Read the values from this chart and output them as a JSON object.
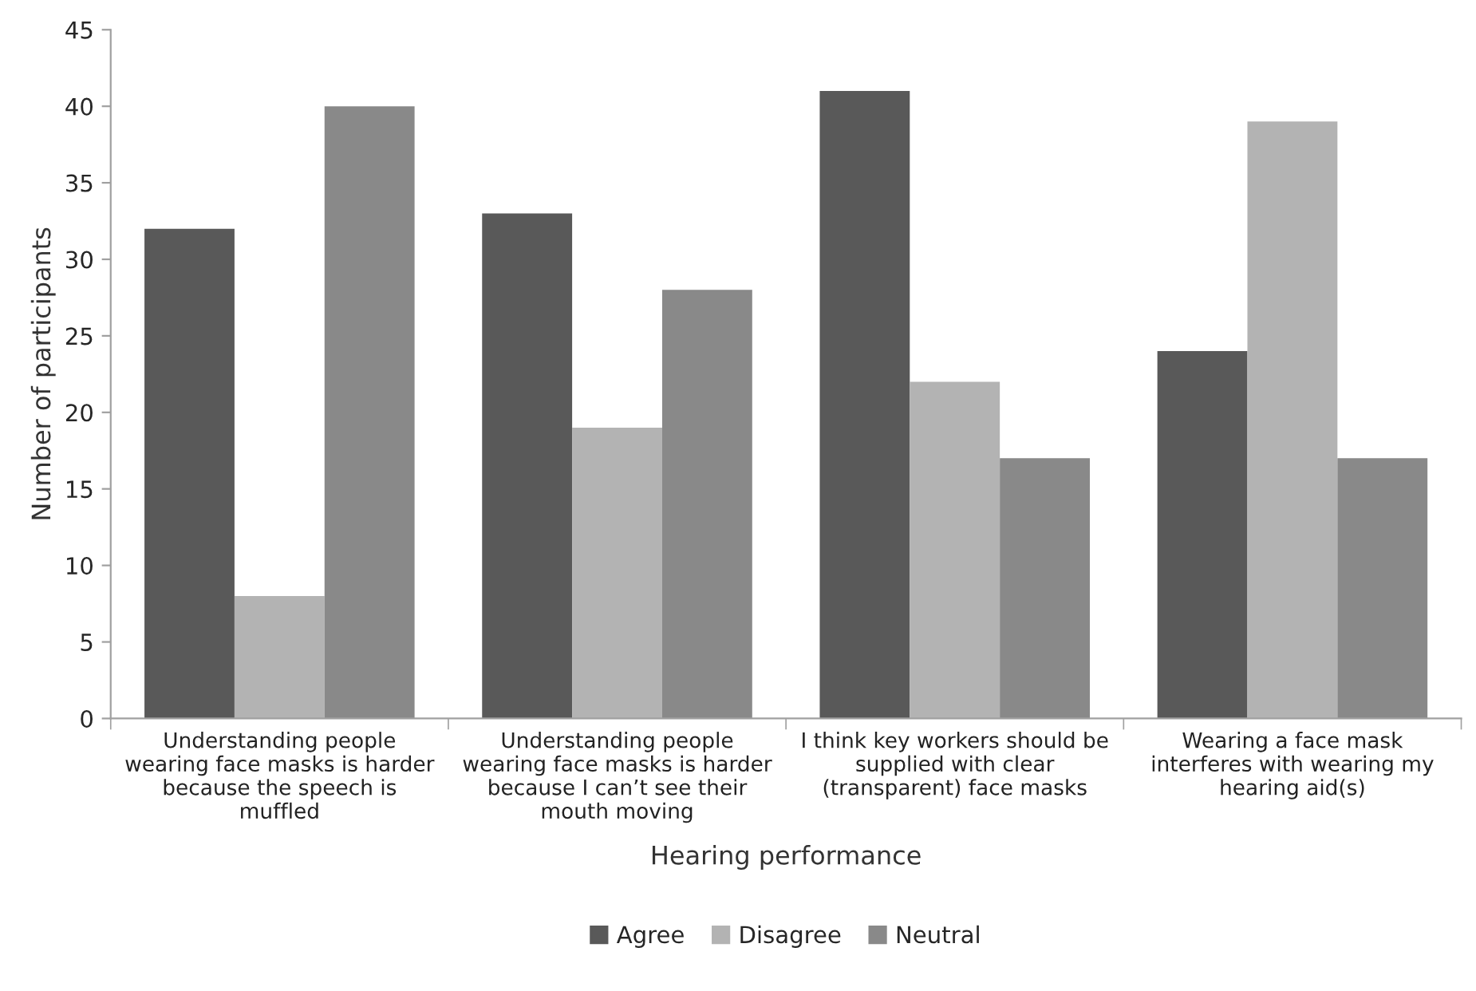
{
  "chart_data": {
    "type": "bar",
    "xlabel": "Hearing performance",
    "ylabel": "Number of participants",
    "categories": [
      "Understanding people\nwearing face masks is harder\nbecause the speech is\nmuffled",
      "Understanding people\nwearing face masks is harder\nbecause I can’t see their\nmouth moving",
      "I think key workers should be\nsupplied with clear\n(transparent) face masks",
      "Wearing a face mask\ninterferes with wearing my\nhearing aid(s)"
    ],
    "series": [
      {
        "name": "Agree",
        "color": "#595959",
        "values": [
          32,
          33,
          41,
          24
        ]
      },
      {
        "name": "Disagree",
        "color": "#b3b3b3",
        "values": [
          8,
          19,
          22,
          39
        ]
      },
      {
        "name": "Neutral",
        "color": "#898989",
        "values": [
          40,
          28,
          17,
          17
        ]
      }
    ],
    "ylim": [
      0,
      45
    ],
    "yticks": [
      0,
      5,
      10,
      15,
      20,
      25,
      30,
      35,
      40,
      45
    ],
    "grid": false,
    "legend": "bottom"
  }
}
